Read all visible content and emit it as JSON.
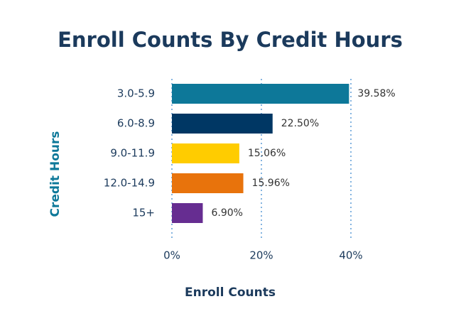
{
  "chart_data": {
    "type": "bar",
    "orientation": "horizontal",
    "title": "Enroll Counts By Credit Hours",
    "x_label": "Enroll Counts",
    "y_label": "Credit Hours",
    "categories": [
      "3.0-5.9",
      "6.0-8.9",
      "9.0-11.9",
      "12.0-14.9",
      "15+"
    ],
    "values": [
      39.58,
      22.5,
      15.06,
      15.96,
      6.9
    ],
    "value_labels": [
      "39.58%",
      "22.50%",
      "15.06%",
      "15.96%",
      "6.90%"
    ],
    "colors": [
      "#0d7899",
      "#003764",
      "#ffcc00",
      "#e8730c",
      "#662d91"
    ],
    "xlim": [
      0,
      40
    ],
    "xticks": [
      {
        "value": 0,
        "label": "0%"
      },
      {
        "value": 20,
        "label": "20%"
      },
      {
        "value": 40,
        "label": "40%"
      }
    ],
    "grid": true
  }
}
